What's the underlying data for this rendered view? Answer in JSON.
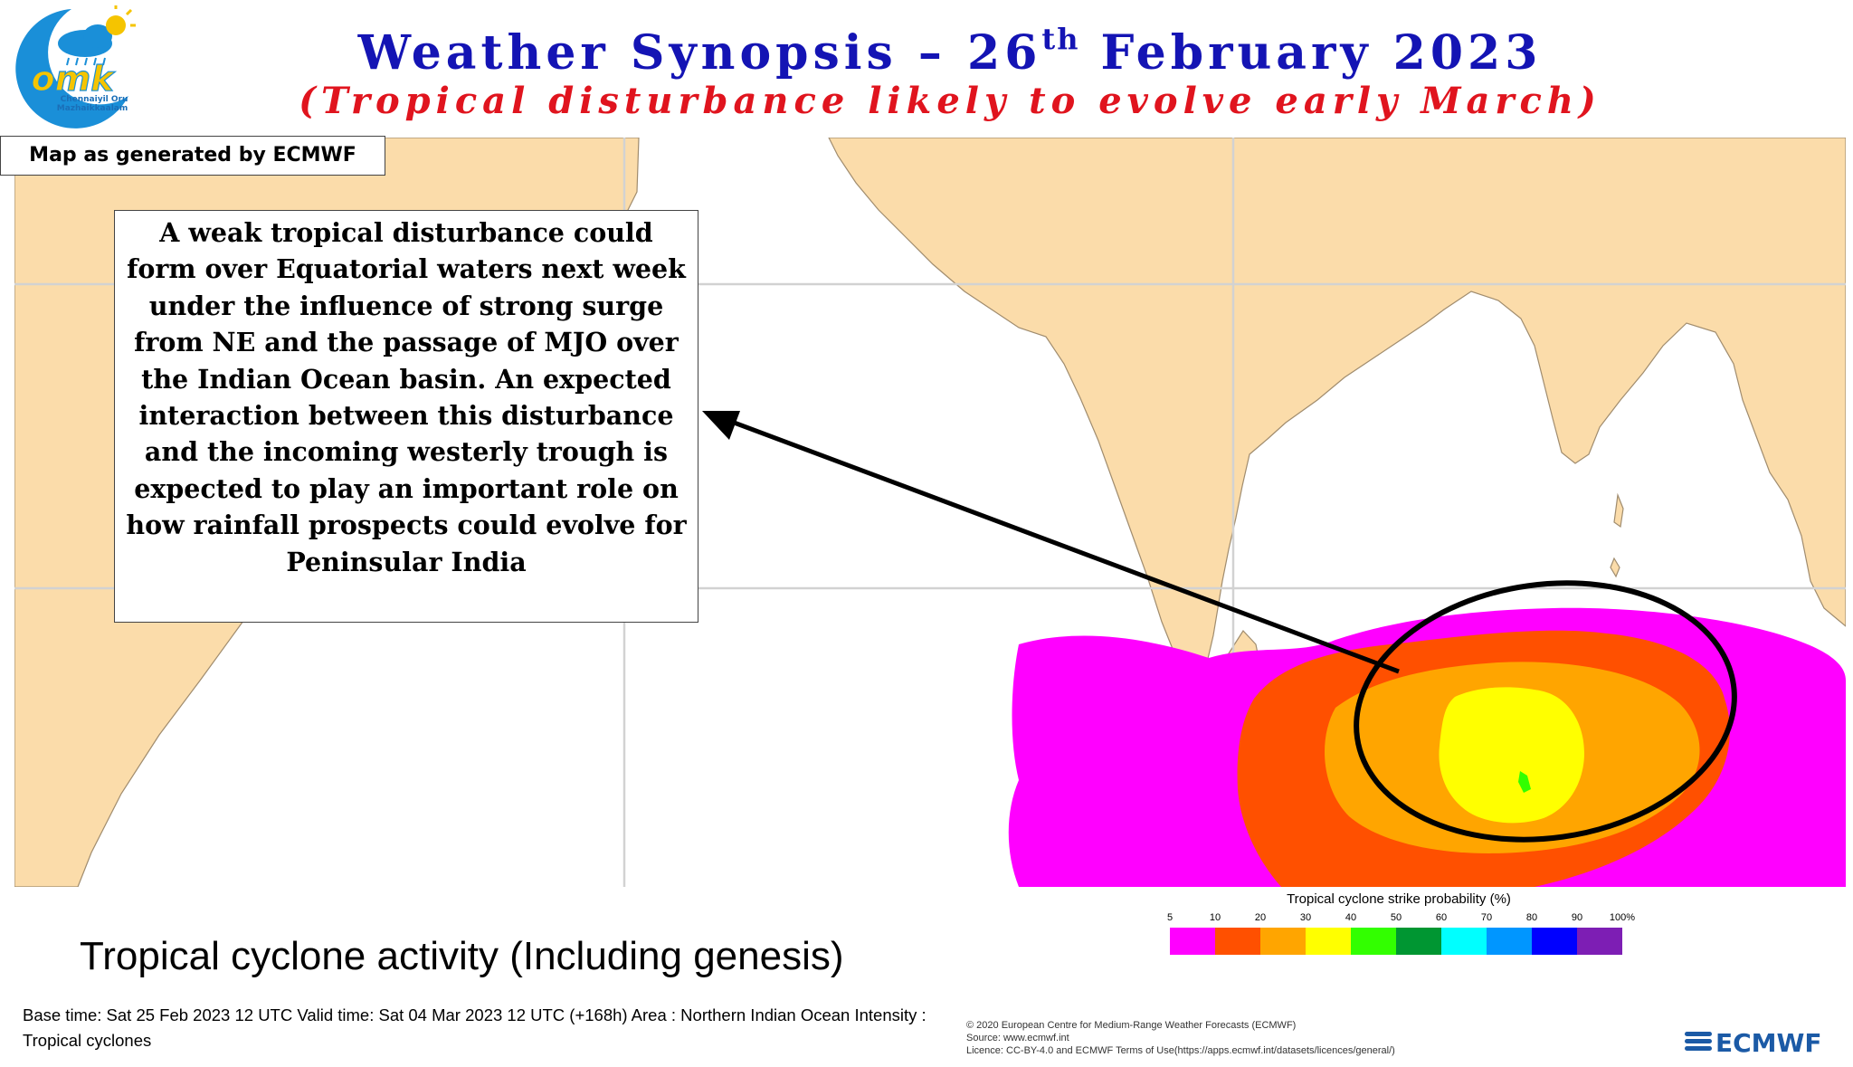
{
  "header": {
    "title_pre": "Weather Synopsis – 26",
    "title_sup": "th",
    "title_post": " February 2023",
    "subtitle": "(Tropical disturbance likely to evolve early March)"
  },
  "logo": {
    "text": "omk",
    "line1": "Chennaiyil Oru",
    "line2": "Mazhaikkaalam"
  },
  "map_source_label": "Map as generated by ECMWF",
  "callout": {
    "text": "A weak tropical disturbance could form over Equatorial waters next week under the influence of strong surge from NE and the passage of MJO over the Indian Ocean basin. An expected interaction between this disturbance and the incoming westerly trough is expected to play an important role on how rainfall prospects could evolve for Peninsular India"
  },
  "legend": {
    "title": "Tropical cyclone strike probability (%)",
    "ticks": [
      "5",
      "10",
      "20",
      "30",
      "40",
      "50",
      "60",
      "70",
      "80",
      "90",
      "100%"
    ],
    "colors": [
      "#ff00ff",
      "#ff5000",
      "#ffa500",
      "#ffff00",
      "#32ff00",
      "#009632",
      "#00ffff",
      "#0096ff",
      "#0000ff",
      "#7d1eb4"
    ]
  },
  "map_colors": {
    "land": "#fbdcaa",
    "ocean": "#ffffff",
    "grid": "#d2d2d2",
    "border": "#a08c6e",
    "p5": "#ff00ff",
    "p10": "#ff5000",
    "p20": "#ffa500",
    "p30": "#ffff00",
    "p40": "#32ff00"
  },
  "activity_title": "Tropical cyclone activity (Including genesis)",
  "base_info": "Base time: Sat 25 Feb 2023 12 UTC Valid time: Sat 04 Mar 2023 12 UTC (+168h) Area : Northern Indian Ocean Intensity : Tropical cyclones",
  "copyright": {
    "line1": "© 2020 European Centre for Medium-Range Weather Forecasts (ECMWF)",
    "line2": "Source: www.ecmwf.int",
    "line3": "Licence: CC-BY-4.0 and ECMWF Terms of Use(https://apps.ecmwf.int/datasets/licences/general/)"
  },
  "ecmwf_logo_text": "ECMWF"
}
